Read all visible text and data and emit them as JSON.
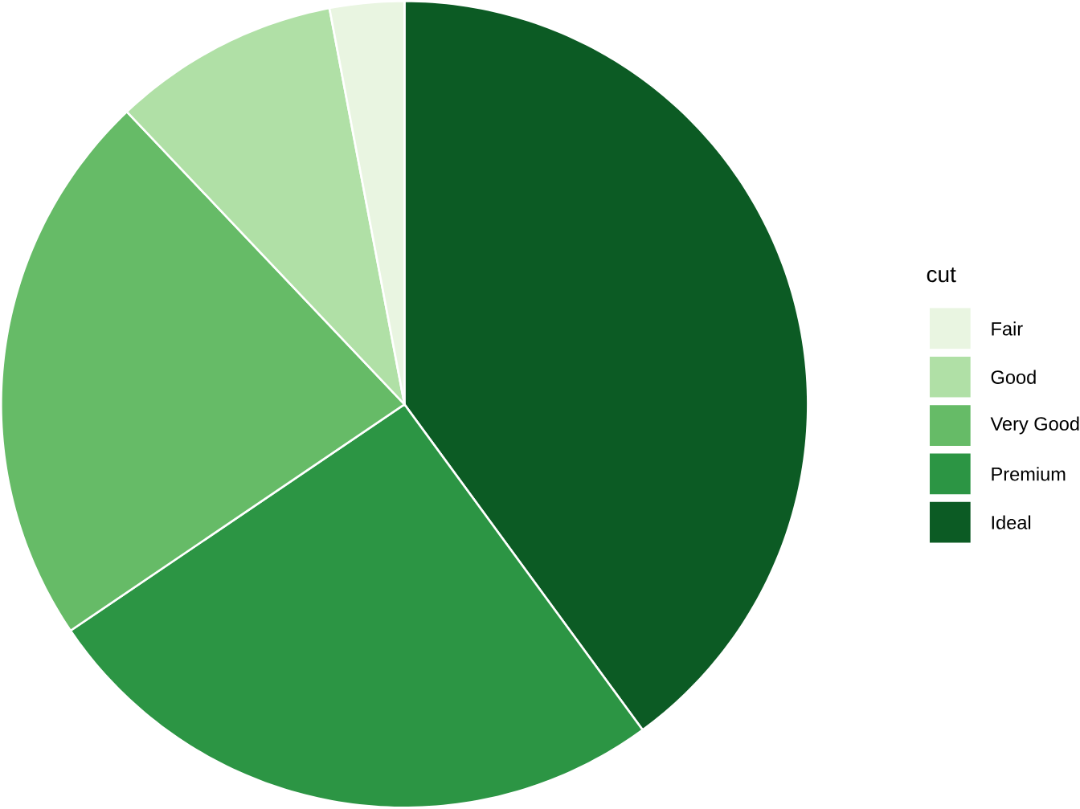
{
  "chart_data": {
    "type": "pie",
    "legend_title": "cut",
    "categories": [
      "Fair",
      "Good",
      "Very Good",
      "Premium",
      "Ideal"
    ],
    "values": [
      2.98,
      9.1,
      22.4,
      25.57,
      39.95
    ],
    "colors": [
      "#e9f5e1",
      "#b0e0a6",
      "#66bb67",
      "#2c9544",
      "#0c5b24"
    ],
    "legend": "right"
  }
}
